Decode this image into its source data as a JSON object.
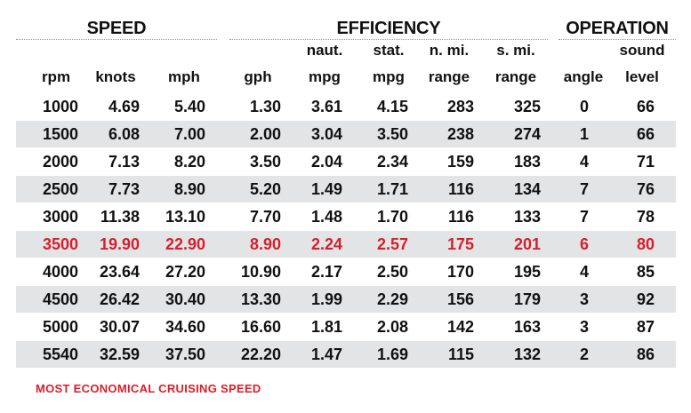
{
  "chart_data": {
    "type": "table",
    "groups": [
      {
        "key": "speed",
        "label": "SPEED"
      },
      {
        "key": "efficiency",
        "label": "EFFICIENCY"
      },
      {
        "key": "operation",
        "label": "OPERATION"
      }
    ],
    "columns": [
      {
        "key": "rpm",
        "top": "",
        "bottom": "rpm"
      },
      {
        "key": "knots",
        "top": "",
        "bottom": "knots"
      },
      {
        "key": "mph",
        "top": "",
        "bottom": "mph"
      },
      {
        "key": "gph",
        "top": "",
        "bottom": "gph"
      },
      {
        "key": "naut_mpg",
        "top": "naut.",
        "bottom": "mpg"
      },
      {
        "key": "stat_mpg",
        "top": "stat.",
        "bottom": "mpg"
      },
      {
        "key": "nmi_range",
        "top": "n. mi.",
        "bottom": "range"
      },
      {
        "key": "smi_range",
        "top": "s. mi.",
        "bottom": "range"
      },
      {
        "key": "angle",
        "top": "",
        "bottom": "angle"
      },
      {
        "key": "sound_level",
        "top": "sound",
        "bottom": "level"
      }
    ],
    "rows": [
      [
        "1000",
        "4.69",
        "5.40",
        "1.30",
        "3.61",
        "4.15",
        "283",
        "325",
        "0",
        "66"
      ],
      [
        "1500",
        "6.08",
        "7.00",
        "2.00",
        "3.04",
        "3.50",
        "238",
        "274",
        "1",
        "66"
      ],
      [
        "2000",
        "7.13",
        "8.20",
        "3.50",
        "2.04",
        "2.34",
        "159",
        "183",
        "4",
        "71"
      ],
      [
        "2500",
        "7.73",
        "8.90",
        "5.20",
        "1.49",
        "1.71",
        "116",
        "134",
        "7",
        "76"
      ],
      [
        "3000",
        "11.38",
        "13.10",
        "7.70",
        "1.48",
        "1.70",
        "116",
        "133",
        "7",
        "78"
      ],
      [
        "3500",
        "19.90",
        "22.90",
        "8.90",
        "2.24",
        "2.57",
        "175",
        "201",
        "6",
        "80"
      ],
      [
        "4000",
        "23.64",
        "27.20",
        "10.90",
        "2.17",
        "2.50",
        "170",
        "195",
        "4",
        "85"
      ],
      [
        "4500",
        "26.42",
        "30.40",
        "13.30",
        "1.99",
        "2.29",
        "156",
        "179",
        "3",
        "92"
      ],
      [
        "5000",
        "30.07",
        "34.60",
        "16.60",
        "1.81",
        "2.08",
        "142",
        "163",
        "3",
        "87"
      ],
      [
        "5540",
        "32.59",
        "37.50",
        "22.20",
        "1.47",
        "1.69",
        "115",
        "132",
        "2",
        "86"
      ]
    ],
    "highlight_row": 5,
    "footnote": "MOST ECONOMICAL CRUISING SPEED"
  },
  "colors": {
    "highlight": "#d61f2c",
    "band": "#e3e4e6",
    "text": "#111111"
  }
}
